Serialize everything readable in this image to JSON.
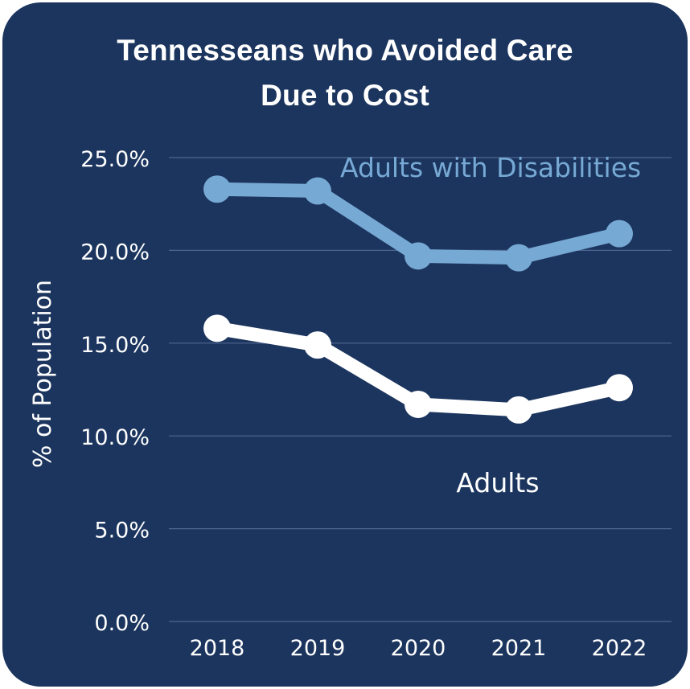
{
  "chart_data": {
    "type": "line",
    "title_lines": [
      "Tennesseans who Avoided Care",
      "Due to Cost"
    ],
    "ylabel": "% of Population",
    "xlabel": "",
    "categories": [
      "2018",
      "2019",
      "2020",
      "2021",
      "2022"
    ],
    "ylim": [
      0,
      25
    ],
    "yticks": [
      "0.0%",
      "5.0%",
      "10.0%",
      "15.0%",
      "20.0%",
      "25.0%"
    ],
    "grid": true,
    "series": [
      {
        "name": "Adults with Disabilities",
        "values": [
          23.3,
          23.2,
          19.7,
          19.6,
          20.9
        ],
        "color": "#76a9d4"
      },
      {
        "name": "Adults",
        "values": [
          15.8,
          14.9,
          11.7,
          11.4,
          12.6
        ],
        "color": "#ffffff"
      }
    ]
  },
  "colors": {
    "background": "#1c355e",
    "gridline": "#4f6690",
    "text": "#ffffff"
  }
}
